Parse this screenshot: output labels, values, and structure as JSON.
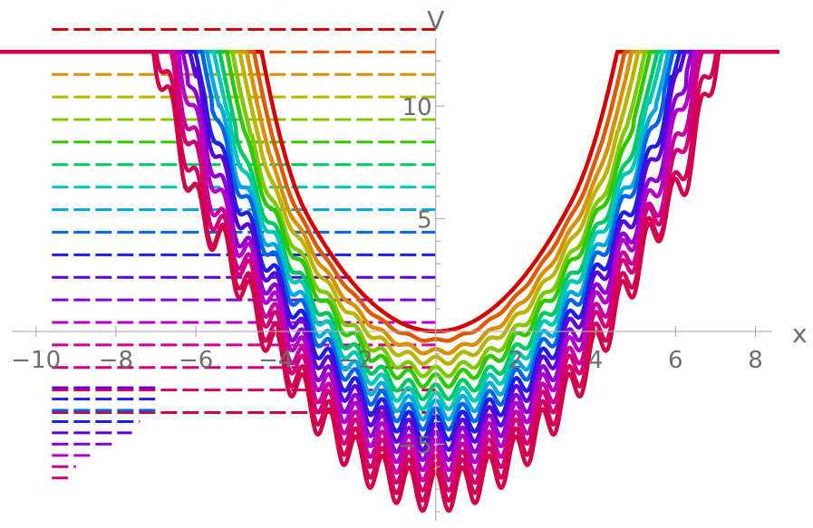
{
  "chart_data": {
    "type": "line",
    "title": "",
    "xlabel": "x",
    "ylabel": "V",
    "xlim": [
      -10.9,
      8.6
    ],
    "ylim": [
      -8.4,
      13.9
    ],
    "grid": false,
    "legend": "none",
    "x_ticks": [
      {
        "value": -10,
        "label": "−10"
      },
      {
        "value": -8,
        "label": "−8"
      },
      {
        "value": -6,
        "label": "−6"
      },
      {
        "value": -4,
        "label": "−4"
      },
      {
        "value": -2,
        "label": "−2"
      },
      {
        "value": 2,
        "label": "2"
      },
      {
        "value": 4,
        "label": "4"
      },
      {
        "value": 6,
        "label": "6"
      },
      {
        "value": 8,
        "label": "8"
      }
    ],
    "y_ticks": [
      {
        "value": -5,
        "label": "−5"
      },
      {
        "value": 5,
        "label": "5"
      },
      {
        "value": 10,
        "label": "10"
      }
    ],
    "y_minor_step": 1,
    "series_count": 18,
    "potential_model": "V(x) = a*(x - c)^2 - d + w*cos(9.5*x)*envelope",
    "series": [
      {
        "color": "#d40000",
        "a": 0.5,
        "c": 0.0,
        "d": 0.0,
        "w": 0.0,
        "dash_level": 13.4,
        "dash_xmin": -9.6
      },
      {
        "color": "#dc5a00",
        "a": 0.48,
        "c": 0.0,
        "d": 0.4,
        "w": 0.06,
        "dash_level": 12.4,
        "dash_xmin": -9.6
      },
      {
        "color": "#d89000",
        "a": 0.47,
        "c": 0.0,
        "d": 0.9,
        "w": 0.12,
        "dash_level": 11.4,
        "dash_xmin": -9.6
      },
      {
        "color": "#b8b400",
        "a": 0.46,
        "c": 0.0,
        "d": 1.3,
        "w": 0.18,
        "dash_level": 10.4,
        "dash_xmin": -9.6
      },
      {
        "color": "#7ec800",
        "a": 0.45,
        "c": 0.0,
        "d": 1.8,
        "w": 0.24,
        "dash_level": 9.4,
        "dash_xmin": -9.6
      },
      {
        "color": "#2ec800",
        "a": 0.45,
        "c": 0.0,
        "d": 2.2,
        "w": 0.3,
        "dash_level": 8.4,
        "dash_xmin": -9.6
      },
      {
        "color": "#00c860",
        "a": 0.44,
        "c": 0.0,
        "d": 2.7,
        "w": 0.35,
        "dash_level": 7.4,
        "dash_xmin": -9.6
      },
      {
        "color": "#00c8b4",
        "a": 0.44,
        "c": 0.0,
        "d": 3.1,
        "w": 0.4,
        "dash_level": 6.4,
        "dash_xmin": -9.6
      },
      {
        "color": "#00aadc",
        "a": 0.43,
        "c": 0.0,
        "d": 3.5,
        "w": 0.45,
        "dash_level": 5.4,
        "dash_xmin": -9.6
      },
      {
        "color": "#0064e6",
        "a": 0.43,
        "c": 0.0,
        "d": 3.9,
        "w": 0.5,
        "dash_level": 4.4,
        "dash_xmin": -9.6
      },
      {
        "color": "#1e1ee6",
        "a": 0.42,
        "c": 0.0,
        "d": 4.3,
        "w": 0.55,
        "dash_level": 3.4,
        "dash_xmin": -9.6
      },
      {
        "color": "#5a00dc",
        "a": 0.42,
        "c": 0.0,
        "d": 4.7,
        "w": 0.6,
        "dash_level": 2.4,
        "dash_xmin": -9.6
      },
      {
        "color": "#8c00d2",
        "a": 0.41,
        "c": 0.0,
        "d": 5.1,
        "w": 0.65,
        "dash_level": 1.4,
        "dash_xmin": -9.6
      },
      {
        "color": "#b400c8",
        "a": 0.41,
        "c": 0.0,
        "d": 5.5,
        "w": 0.7,
        "dash_level": 0.4,
        "dash_xmin": -9.6
      },
      {
        "color": "#c800a0",
        "a": 0.4,
        "c": 0.0,
        "d": 5.9,
        "w": 0.75,
        "dash_level": -0.6,
        "dash_xmin": -9.6
      },
      {
        "color": "#d20078",
        "a": 0.4,
        "c": 0.0,
        "d": 6.3,
        "w": 0.8,
        "dash_level": -1.6,
        "dash_xmin": -9.6
      },
      {
        "color": "#d2005a",
        "a": 0.39,
        "c": 0.0,
        "d": 6.7,
        "w": 0.85,
        "dash_level": -2.6,
        "dash_xmin": -9.6
      },
      {
        "color": "#d20046",
        "a": 0.39,
        "c": 0.0,
        "d": 7.1,
        "w": 0.9,
        "dash_level": -3.6,
        "dash_xmin": -9.6
      }
    ],
    "lower_dash_levels": [
      {
        "level": -2.5,
        "color": "#5a00dc",
        "xmax": -7.0
      },
      {
        "level": -3.0,
        "color": "#1e1ee6",
        "xmax": -7.0
      },
      {
        "level": -3.5,
        "color": "#0064e6",
        "xmax": -7.0
      },
      {
        "level": -4.0,
        "color": "#1e1ee6",
        "xmax": -7.4
      },
      {
        "level": -4.5,
        "color": "#5a00dc",
        "xmax": -7.6
      },
      {
        "level": -5.0,
        "color": "#8c00d2",
        "xmax": -8.0
      },
      {
        "level": -5.5,
        "color": "#b400c8",
        "xmax": -8.6
      },
      {
        "level": -6.0,
        "color": "#c800a0",
        "xmax": -9.0
      },
      {
        "level": -6.5,
        "color": "#d20078",
        "xmax": -9.2
      },
      {
        "level": -7.0,
        "color": "#d2005a",
        "xmax": -9.6
      }
    ]
  }
}
